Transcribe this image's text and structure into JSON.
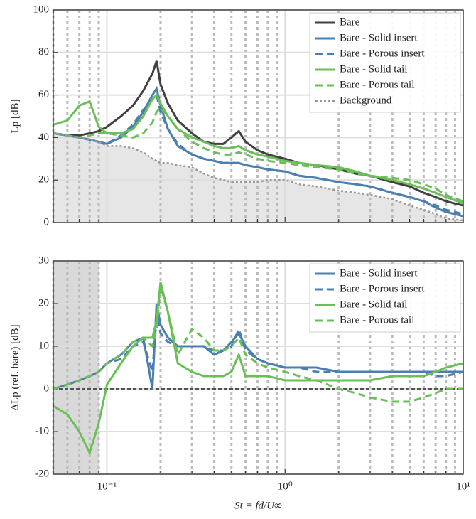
{
  "chart_data": [
    {
      "type": "line",
      "y_label": "Lp [dB]",
      "log_x": true,
      "xlim": [
        0.05,
        10
      ],
      "ylim": [
        0,
        100
      ],
      "yticks": [
        0,
        20,
        40,
        60,
        80,
        100
      ],
      "grid": true,
      "legend": "upper right",
      "x": [
        0.05,
        0.06,
        0.07,
        0.08,
        0.09,
        0.1,
        0.12,
        0.14,
        0.16,
        0.18,
        0.19,
        0.2,
        0.22,
        0.25,
        0.3,
        0.35,
        0.4,
        0.45,
        0.5,
        0.55,
        0.6,
        0.7,
        0.8,
        1,
        1.2,
        1.5,
        2,
        2.5,
        3,
        4,
        5,
        6,
        7,
        8,
        10
      ],
      "series": [
        {
          "name": "Bare",
          "color": "#404040",
          "linestyle": "solid",
          "values": [
            42,
            41,
            41,
            42,
            43,
            45,
            50,
            55,
            62,
            70,
            76,
            65,
            56,
            48,
            42,
            38,
            37,
            37,
            40,
            43,
            38,
            34,
            32,
            30,
            28,
            27,
            25,
            23,
            22,
            19,
            17,
            14,
            12,
            10,
            8
          ]
        },
        {
          "name": "Bare - Solid insert",
          "color": "#4a7fb0",
          "linestyle": "solid",
          "values": [
            42,
            41,
            40,
            39,
            38,
            37,
            40,
            45,
            52,
            60,
            63,
            55,
            44,
            36,
            32,
            30,
            29,
            28,
            28,
            28,
            27,
            26,
            25,
            24,
            22,
            21,
            19,
            18,
            17,
            14,
            12,
            10,
            7,
            5,
            3
          ]
        },
        {
          "name": "Bare - Porous insert",
          "color": "#4a7fb0",
          "linestyle": "dashed",
          "values": [
            42,
            41,
            40,
            39,
            38,
            37,
            41,
            46,
            53,
            58,
            60,
            52,
            44,
            37,
            32,
            30,
            29,
            28,
            28,
            28,
            27,
            26,
            25,
            24,
            22,
            21,
            19,
            18,
            17,
            14,
            12,
            10,
            8,
            6,
            4
          ]
        },
        {
          "name": "Bare - Solid tail",
          "color": "#6abf59",
          "linestyle": "solid",
          "values": [
            46,
            48,
            55,
            57,
            45,
            42,
            42,
            44,
            50,
            58,
            60,
            56,
            50,
            44,
            40,
            38,
            36,
            35,
            35,
            36,
            34,
            32,
            31,
            29,
            28,
            27,
            26,
            24,
            22,
            20,
            18,
            16,
            14,
            12,
            9
          ]
        },
        {
          "name": "Bare - Porous tail",
          "color": "#6abf59",
          "linestyle": "dashed",
          "values": [
            42,
            41,
            40,
            41,
            42,
            42,
            41,
            40,
            42,
            47,
            52,
            54,
            50,
            44,
            38,
            35,
            33,
            32,
            32,
            33,
            32,
            30,
            29,
            28,
            27,
            26,
            25,
            23,
            22,
            21,
            20,
            18,
            16,
            13,
            10
          ]
        },
        {
          "name": "Background",
          "color": "#999999",
          "linestyle": "dotted",
          "fill": "#e6e6e6",
          "values": [
            42,
            41,
            40,
            39,
            38,
            36,
            36,
            35,
            33,
            30,
            29,
            28,
            28,
            27,
            26,
            23,
            21,
            20,
            19,
            19,
            19,
            19,
            20,
            20,
            18,
            17,
            15,
            14,
            13,
            11,
            8,
            6,
            4,
            2,
            1
          ]
        }
      ]
    },
    {
      "type": "line",
      "y_label": "ΔLp (ref. bare) [dB]",
      "x_label": "St = fd/U∞",
      "log_x": true,
      "xlim": [
        0.05,
        10
      ],
      "ylim": [
        -20,
        30
      ],
      "yticks": [
        -20,
        -10,
        0,
        10,
        20,
        30
      ],
      "xticks": [
        {
          "value": 0.1,
          "label": "10⁻¹"
        },
        {
          "value": 1,
          "label": "10⁰"
        },
        {
          "value": 10,
          "label": "10¹"
        }
      ],
      "grid": true,
      "legend": "upper right",
      "shaded_xrange": [
        0.05,
        0.09
      ],
      "x": [
        0.05,
        0.06,
        0.07,
        0.08,
        0.09,
        0.1,
        0.12,
        0.14,
        0.16,
        0.18,
        0.19,
        0.2,
        0.22,
        0.25,
        0.3,
        0.35,
        0.4,
        0.45,
        0.5,
        0.55,
        0.6,
        0.7,
        0.8,
        1,
        1.2,
        1.5,
        2,
        2.5,
        3,
        4,
        5,
        6,
        7,
        8,
        10
      ],
      "series": [
        {
          "name": "Bare - Solid insert",
          "color": "#4a7fb0",
          "linestyle": "solid",
          "values": [
            0,
            1,
            2,
            3,
            4,
            6,
            8,
            11,
            12,
            0,
            20,
            15,
            12,
            10,
            10,
            10,
            8,
            9,
            11,
            13,
            10,
            7,
            6,
            5,
            5,
            5,
            4,
            4,
            4,
            4,
            4,
            4,
            4,
            4,
            4
          ]
        },
        {
          "name": "Bare - Porous insert",
          "color": "#4a7fb0",
          "linestyle": "dashed",
          "values": [
            0,
            1,
            2,
            3,
            4,
            6,
            7,
            10,
            11,
            4,
            17,
            13,
            11,
            10,
            10,
            10,
            9,
            9,
            10,
            14,
            9,
            7,
            6,
            5,
            5,
            4,
            4,
            4,
            4,
            4,
            4,
            4,
            3,
            3,
            4
          ]
        },
        {
          "name": "Bare - Solid tail",
          "color": "#6abf59",
          "linestyle": "solid",
          "values": [
            -4,
            -6,
            -10,
            -15,
            -8,
            1,
            6,
            10,
            12,
            12,
            16,
            25,
            18,
            6,
            4,
            3,
            3,
            3,
            4,
            8,
            3,
            3,
            3,
            2,
            2,
            2,
            2,
            2,
            2,
            3,
            3,
            3,
            4,
            5,
            6
          ]
        },
        {
          "name": "Bare - Porous tail",
          "color": "#6abf59",
          "linestyle": "dashed",
          "values": [
            0,
            1,
            2,
            3,
            4,
            6,
            8,
            11,
            12,
            10,
            14,
            24,
            18,
            8,
            14,
            12,
            9,
            9,
            10,
            12,
            8,
            6,
            5,
            4,
            3,
            2,
            0,
            -1,
            -2,
            -3,
            -3,
            -2,
            -1,
            0,
            0
          ]
        }
      ]
    }
  ]
}
